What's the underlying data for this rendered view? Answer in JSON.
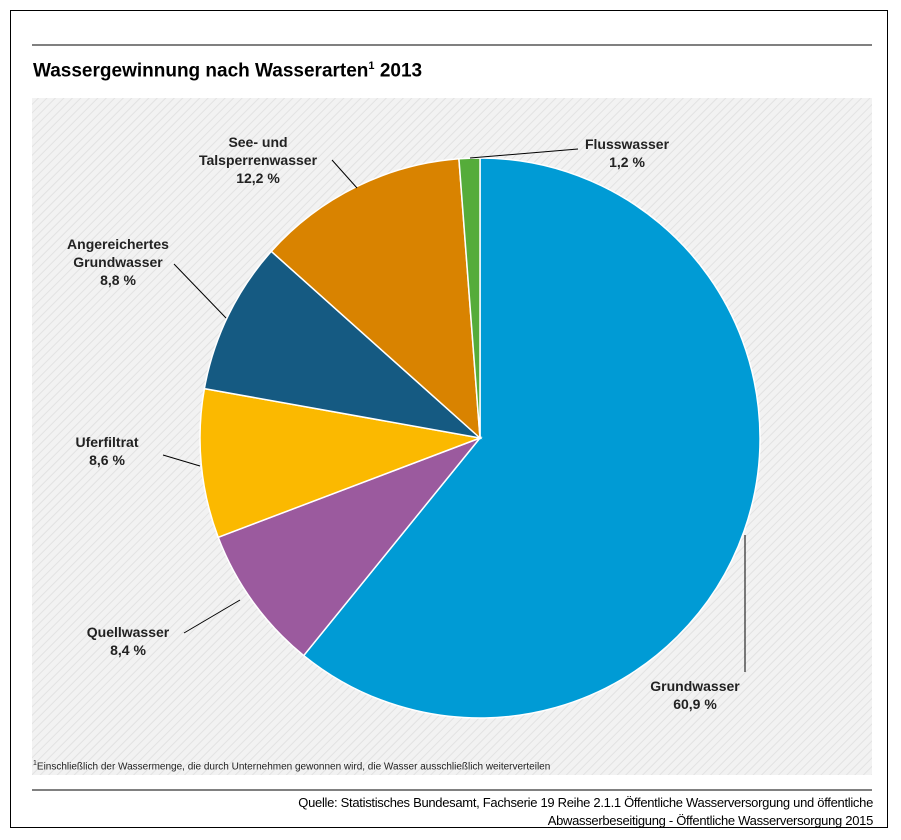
{
  "chart_data": {
    "type": "pie",
    "title": "Wassergewinnung nach Wasserarten",
    "title_superscript": "1",
    "title_year": "2013",
    "categories": [
      "Grundwasser",
      "Quellwasser",
      "Uferfiltrat",
      "Angereichertes Grundwasser",
      "See- und Talsperrenwasser",
      "Flusswasser"
    ],
    "values": [
      60.9,
      8.4,
      8.6,
      8.8,
      12.2,
      1.2
    ],
    "value_labels": [
      "60,9 %",
      "8,4 %",
      "8,6 %",
      "8,8 %",
      "12,2 %",
      "1,2 %"
    ],
    "colors": [
      "#009bd5",
      "#9b5a9e",
      "#fbb900",
      "#155a82",
      "#d98300",
      "#55ac3a"
    ],
    "footnote_marker": "1",
    "footnote": "Einschließlich der Wassermenge,  die durch Unternehmen  gewonnen  wird,  die Wasser  ausschließlich weiterverteilen",
    "source": [
      "Quelle:  Statistisches Bundesamt, Fachserie 19  Reihe 2.1.1 Öffentliche Wasserversorgung und öffentliche",
      "Abwasserbeseitigung - Öffentliche Wasserversorgung 2015"
    ]
  }
}
